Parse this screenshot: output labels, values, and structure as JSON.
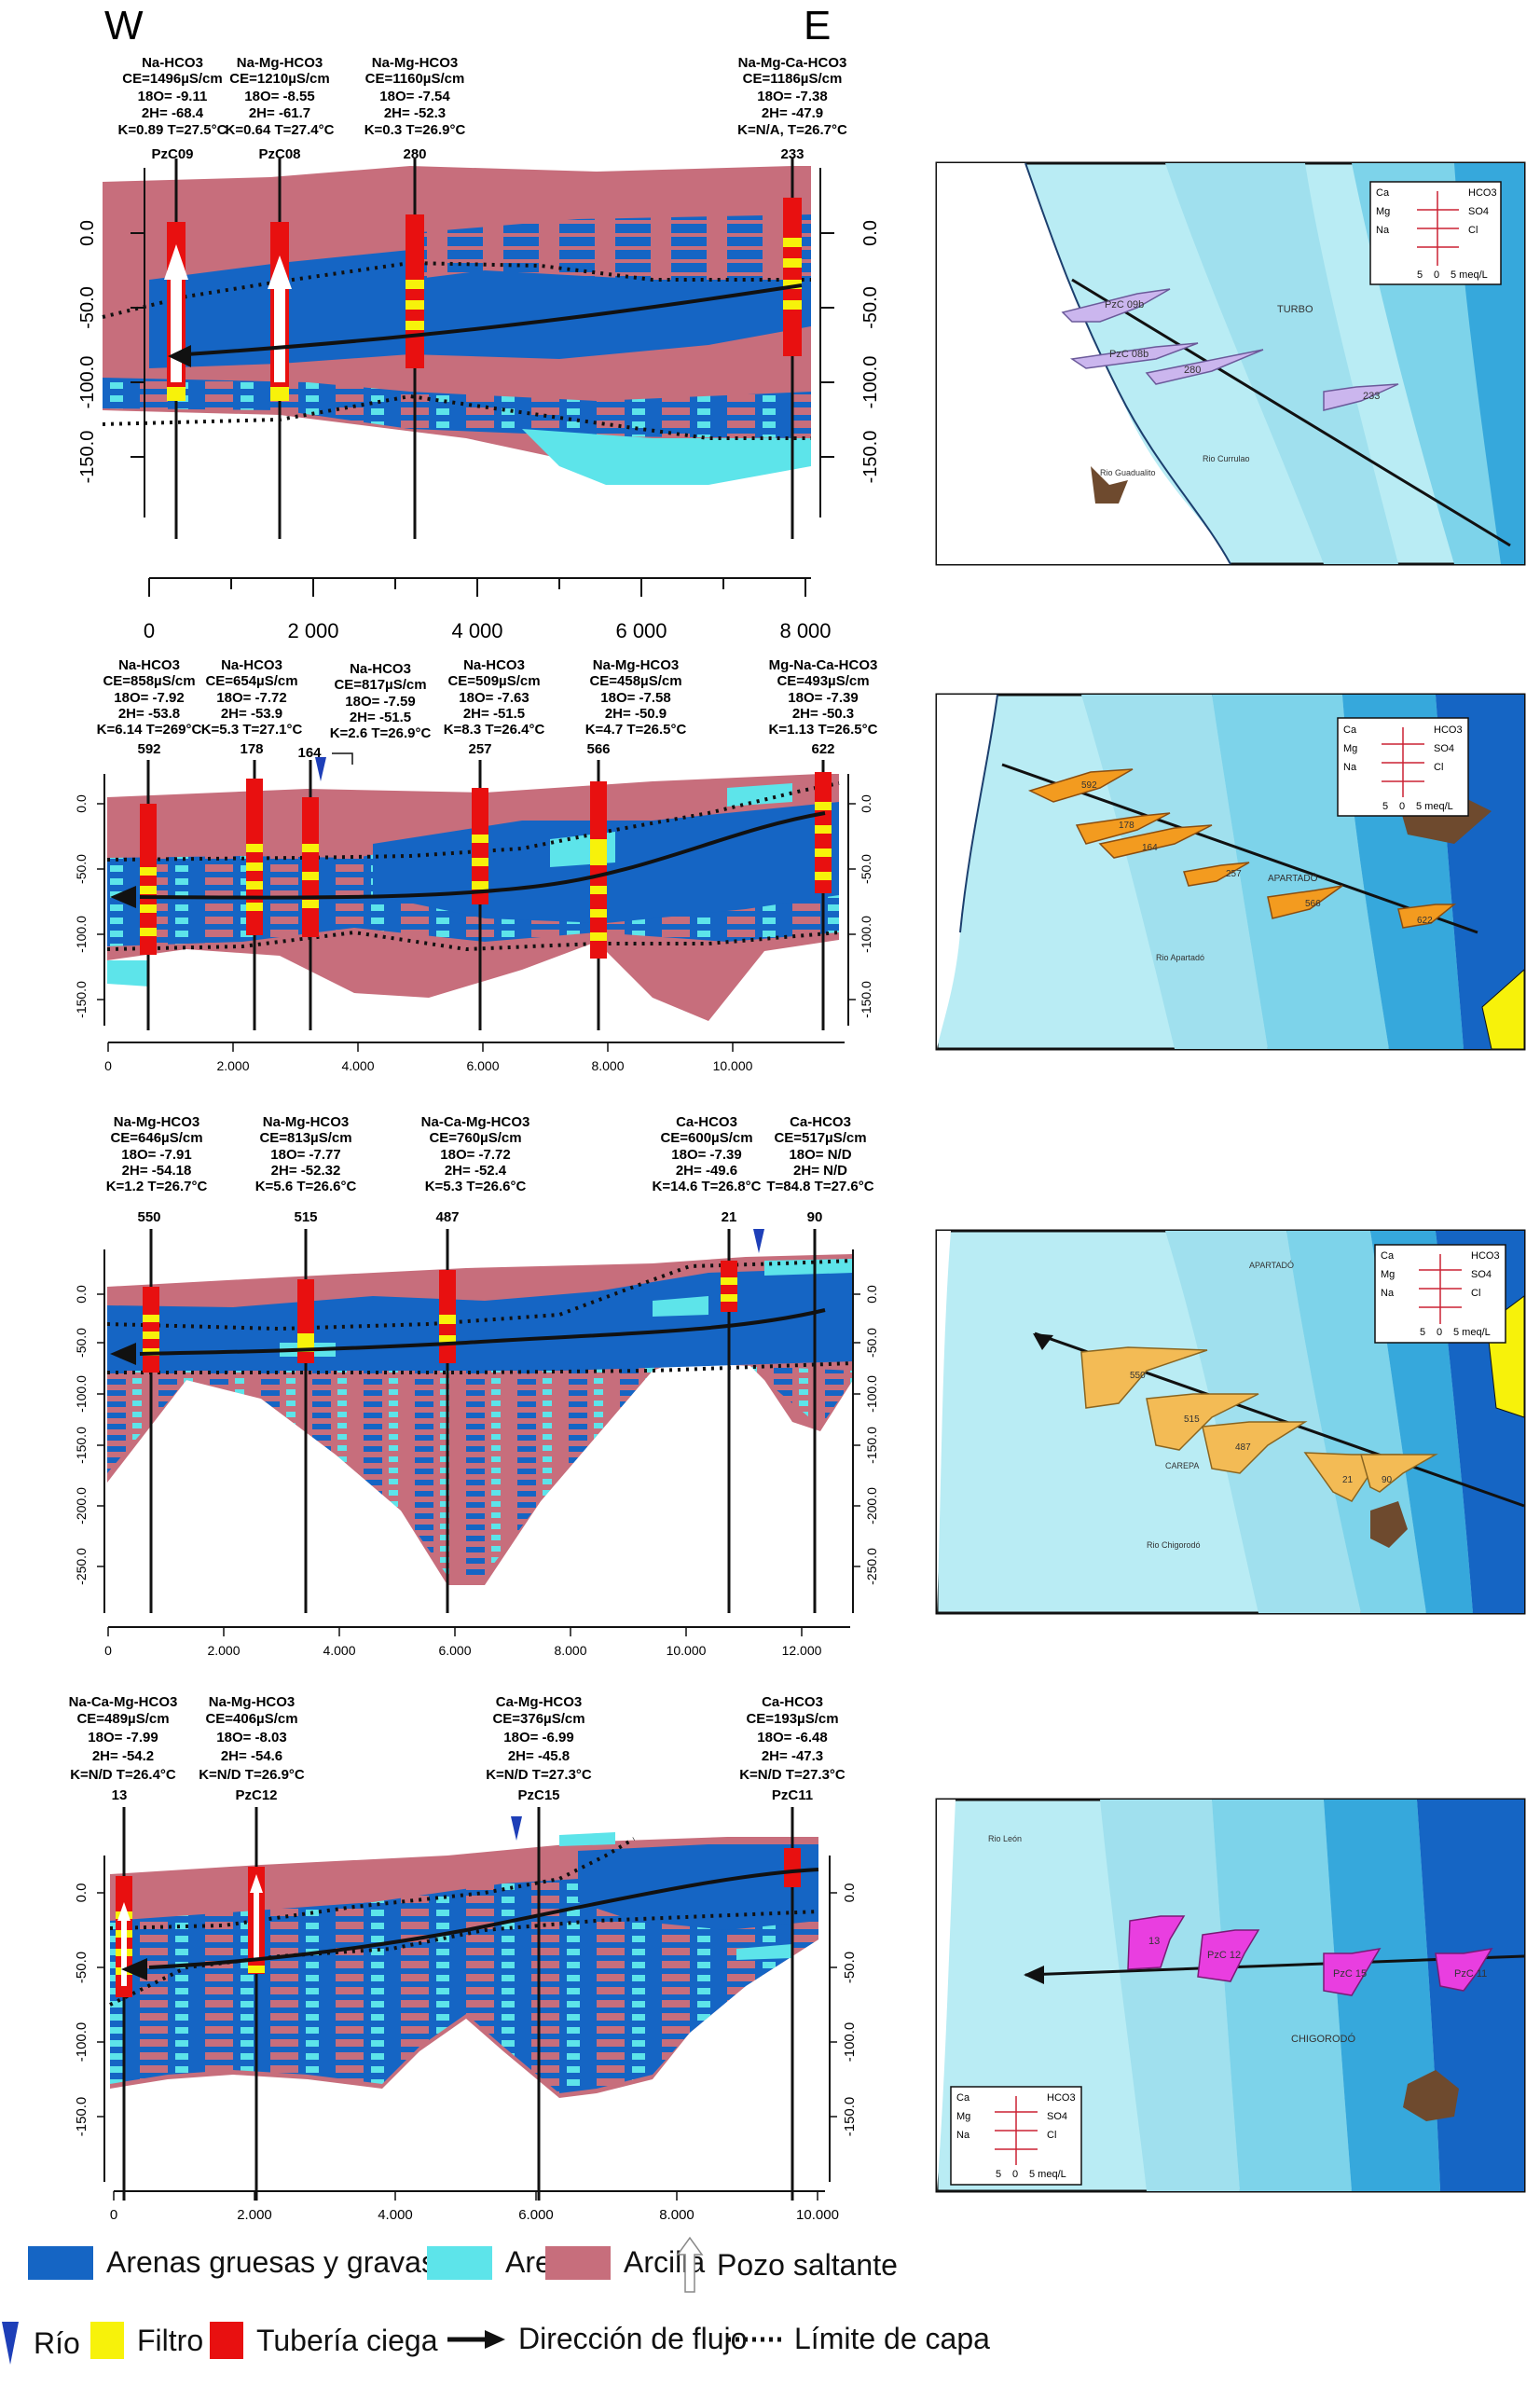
{
  "header": {
    "west": "W",
    "east": "E"
  },
  "colors": {
    "gravel": "#1565c4",
    "sand": "#5de4ea",
    "clay": "#c76e7c",
    "filter": "#f7f20a",
    "casing": "#e81010",
    "river": "#1e3fb8",
    "bg_light": "#b9ecf4",
    "bg_mid": "#7dd3ea",
    "bg_dark": "#1565c4"
  },
  "sections": [
    {
      "wells": [
        {
          "lines": [
            "Na-HCO3",
            "CE=1496µS/cm",
            "18O= -9.11",
            "2H= -68.4",
            "K=0.89 T=27.5°C"
          ],
          "id": "PzC09",
          "x": 0.3
        },
        {
          "lines": [
            "Na-Mg-HCO3",
            "CE=1210µS/cm",
            "18O= -8.55",
            "2H= -61.7",
            "K=0.64 T=27.4°C"
          ],
          "id": "PzC08",
          "x": 1.5
        },
        {
          "lines": [
            "Na-Mg-HCO3",
            "CE=1160µS/cm",
            "18O= -7.54",
            "2H= -52.3",
            "K=0.3 T=26.9°C"
          ],
          "id": "280",
          "x": 3.2
        },
        {
          "lines": [
            "Na-Mg-Ca-HCO3",
            "CE=1186µS/cm",
            "18O= -7.38",
            "2H= -47.9",
            "K=N/A, T=26.7°C"
          ],
          "id": "233",
          "x": 7.9
        }
      ],
      "y_ticks": [
        "0.0",
        "-50.0",
        "-100.0",
        "-150.0"
      ],
      "x_ticks": [
        "0",
        "2 000",
        "4 000",
        "6 000",
        "8 000"
      ]
    },
    {
      "wells": [
        {
          "lines": [
            "Na-HCO3",
            "CE=858µS/cm",
            "18O= -7.92",
            "2H= -53.8",
            "K=6.14 T=269°C"
          ],
          "id": "592"
        },
        {
          "lines": [
            "Na-HCO3",
            "CE=654µS/cm",
            "18O= -7.72",
            "2H= -53.9",
            "K=5.3 T=27.1°C"
          ],
          "id": "178"
        },
        {
          "lines": [
            "Na-HCO3",
            "CE=817µS/cm",
            "18O= -7.59",
            "2H= -51.5",
            "K=2.6 T=26.9°C"
          ],
          "id": "164"
        },
        {
          "lines": [
            "Na-HCO3",
            "CE=509µS/cm",
            "18O= -7.63",
            "2H= -51.5",
            "K=8.3 T=26.4°C"
          ],
          "id": "257"
        },
        {
          "lines": [
            "Na-Mg-HCO3",
            "CE=458µS/cm",
            "18O= -7.58",
            "2H= -50.9",
            "K=4.7 T=26.5°C"
          ],
          "id": "566"
        },
        {
          "lines": [
            "Mg-Na-Ca-HCO3",
            "CE=493µS/cm",
            "18O= -7.39",
            "2H= -50.3",
            "K=1.13 T=26.5°C"
          ],
          "id": "622"
        }
      ],
      "y_ticks": [
        "0.0",
        "-50.0",
        "-100.0",
        "-150.0"
      ],
      "x_ticks": [
        "0",
        "2.000",
        "4.000",
        "6.000",
        "8.000",
        "10.000"
      ]
    },
    {
      "wells": [
        {
          "lines": [
            "Na-Mg-HCO3",
            "CE=646µS/cm",
            "18O= -7.91",
            "2H= -54.18",
            "K=1.2 T=26.7°C"
          ],
          "id": "550"
        },
        {
          "lines": [
            "Na-Mg-HCO3",
            "CE=813µS/cm",
            "18O= -7.77",
            "2H= -52.32",
            "K=5.6 T=26.6°C"
          ],
          "id": "515"
        },
        {
          "lines": [
            "Na-Ca-Mg-HCO3",
            "CE=760µS/cm",
            "18O= -7.72",
            "2H= -52.4",
            "K=5.3 T=26.6°C"
          ],
          "id": "487"
        },
        {
          "lines": [
            "Ca-HCO3",
            "CE=600µS/cm",
            "18O= -7.39",
            "2H= -49.6",
            "K=14.6 T=26.8°C"
          ],
          "id": "21"
        },
        {
          "lines": [
            "Ca-HCO3",
            "CE=517µS/cm",
            "18O= N/D",
            "2H= N/D",
            "T=84.8 T=27.6°C"
          ],
          "id": "90"
        }
      ],
      "y_ticks": [
        "0.0",
        "-50.0",
        "-100.0",
        "-150.0",
        "-200.0",
        "-250.0"
      ],
      "x_ticks": [
        "0",
        "2.000",
        "4.000",
        "6.000",
        "8.000",
        "10.000",
        "12.000"
      ]
    },
    {
      "wells": [
        {
          "lines": [
            "Na-Ca-Mg-HCO3",
            "CE=489µS/cm",
            "18O= -7.99",
            "2H= -54.2",
            "K=N/D T=26.4°C"
          ],
          "id": "13"
        },
        {
          "lines": [
            "Na-Mg-HCO3",
            "CE=406µS/cm",
            "18O= -8.03",
            "2H= -54.6",
            "K=N/D T=26.9°C"
          ],
          "id": "PzC12"
        },
        {
          "lines": [
            "Ca-Mg-HCO3",
            "CE=376µS/cm",
            "18O= -6.99",
            "2H= -45.8",
            "K=N/D T=27.3°C"
          ],
          "id": "PzC15"
        },
        {
          "lines": [
            "Ca-HCO3",
            "CE=193µS/cm",
            "18O= -6.48",
            "2H= -47.3",
            "K=N/D T=27.3°C"
          ],
          "id": "PzC11"
        }
      ],
      "y_ticks": [
        "0.0",
        "-50.0",
        "-100.0",
        "-150.0"
      ],
      "x_ticks": [
        "0",
        "2.000",
        "4.000",
        "6.000",
        "8.000",
        "10.000"
      ]
    }
  ],
  "maps": [
    {
      "labels": [
        "PzC 09b",
        "PzC 08b",
        "280",
        "233",
        "TURBO",
        "Rio Currulao",
        "Rio Guadualito"
      ],
      "stiff_color": "#cbb6ee"
    },
    {
      "labels": [
        "592",
        "178",
        "164",
        "257",
        "566",
        "622",
        "APARTADÓ",
        "Rio Apartadó"
      ],
      "stiff_color": "#f39b1f"
    },
    {
      "labels": [
        "550",
        "515",
        "487",
        "21",
        "90",
        "APARTADÓ",
        "CAREPA",
        "Rio Chigorodó"
      ],
      "stiff_color": "#f3bb55"
    },
    {
      "labels": [
        "13",
        "PzC 12",
        "PzC 15",
        "PzC 11",
        "CHIGORODÓ",
        "Rio León"
      ],
      "stiff_color": "#e93ee0"
    }
  ],
  "stiff_key": {
    "left": [
      "Ca",
      "Mg",
      "Na"
    ],
    "right": [
      "HCO3",
      "SO4",
      "Cl"
    ],
    "scale": [
      "5",
      "0",
      "5 meq/L"
    ]
  },
  "legend": {
    "gravel": "Arenas gruesas y gravas",
    "sand": "Arena",
    "clay": "Arcilla",
    "artesian": "Pozo saltante",
    "river": "Río",
    "filter": "Filtro",
    "casing": "Tubería ciega",
    "flow": "Dirección de flujo",
    "layer": "Límite de capa"
  }
}
